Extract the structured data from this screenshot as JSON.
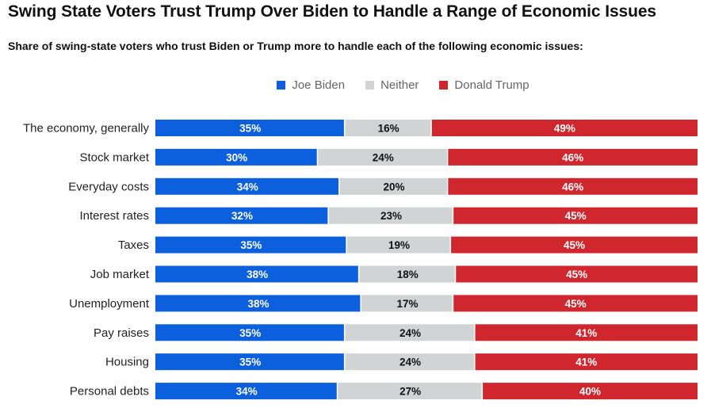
{
  "chart_data": {
    "type": "bar",
    "orientation": "horizontal",
    "stacked": true,
    "normalized": true,
    "title": "Swing State Voters Trust Trump Over Biden to Handle a Range of Economic Issues",
    "subtitle": "Share of swing-state voters who trust Biden or Trump more to handle each of the following economic issues:",
    "xlabel": "",
    "ylabel": "",
    "legend_position": "top-center",
    "grid": false,
    "value_format": "{v}%",
    "categories": [
      "The economy, generally",
      "Stock market",
      "Everyday costs",
      "Interest rates",
      "Taxes",
      "Job market",
      "Unemployment",
      "Pay raises",
      "Housing",
      "Personal debts"
    ],
    "series": [
      {
        "name": "Joe Biden",
        "color": "#0c5fdd",
        "label_color": "#ffffff",
        "values": [
          35,
          30,
          34,
          32,
          35,
          38,
          38,
          35,
          35,
          34
        ]
      },
      {
        "name": "Neither",
        "color": "#d1d4d5",
        "label_color": "#111111",
        "values": [
          16,
          24,
          20,
          23,
          19,
          18,
          17,
          24,
          24,
          27
        ]
      },
      {
        "name": "Donald Trump",
        "color": "#d0272f",
        "label_color": "#ffffff",
        "values": [
          49,
          46,
          46,
          45,
          45,
          45,
          45,
          41,
          41,
          40
        ]
      }
    ]
  }
}
